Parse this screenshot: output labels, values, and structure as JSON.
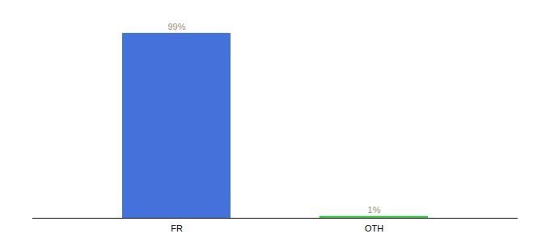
{
  "chart_data": {
    "type": "bar",
    "categories": [
      "FR",
      "OTH"
    ],
    "values": [
      99,
      1
    ],
    "colors": [
      "#4472db",
      "#2ecc40"
    ],
    "value_labels": [
      "99%",
      "1%"
    ],
    "data_labels": true,
    "ylim": [
      0,
      108
    ],
    "tick_labels": "x",
    "grid": false
  }
}
